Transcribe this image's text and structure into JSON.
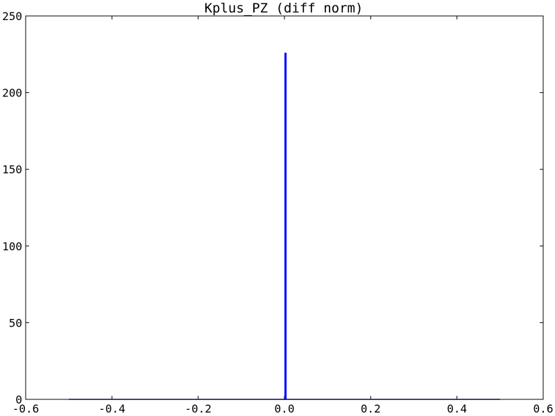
{
  "chart_data": {
    "type": "histogram",
    "title": "Kplus_PZ (diff norm)",
    "xlabel": "",
    "ylabel": "",
    "xlim": [
      -0.6,
      0.6
    ],
    "ylim": [
      0,
      250
    ],
    "x_ticks": [
      "-0.6",
      "-0.4",
      "-0.2",
      "0.0",
      "0.2",
      "0.4",
      "0.6"
    ],
    "y_ticks": [
      "0",
      "50",
      "100",
      "150",
      "200",
      "250"
    ],
    "grid": false,
    "legend": "none",
    "series": [
      {
        "color": "#0000ff",
        "bin_range": [
          -0.5,
          0.5
        ],
        "spike_x": 0.0,
        "spike_width": 0.005,
        "value": 226,
        "baseline_value": 0
      }
    ]
  }
}
